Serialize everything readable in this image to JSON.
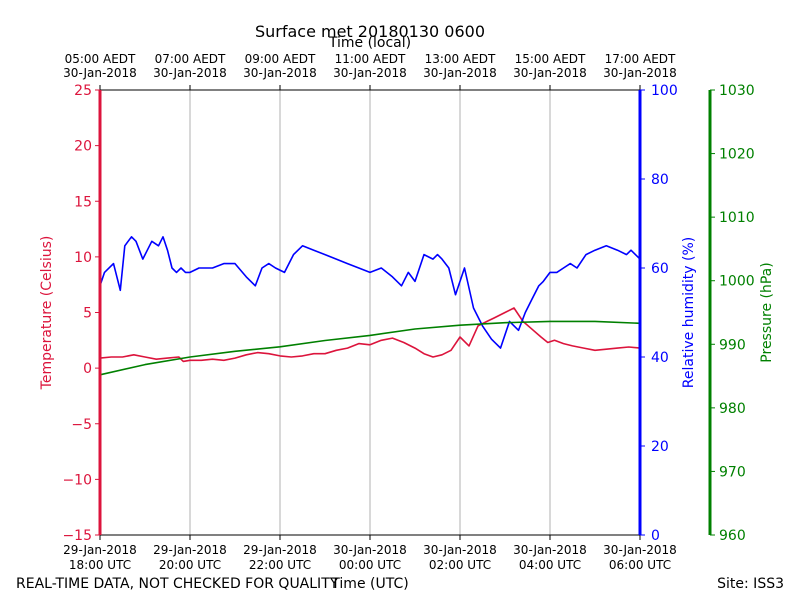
{
  "chart_data": {
    "type": "line",
    "title": "Surface met 20180130 0600",
    "top_xlabel": "Time (local)",
    "xlabel": "Time (UTC)",
    "x_range_hours": [
      0,
      12
    ],
    "grid": "vertical only",
    "x_ticks": [
      {
        "hour": 0,
        "utc": [
          "29-Jan-2018",
          "18:00 UTC"
        ],
        "local": [
          "05:00 AEDT",
          "30-Jan-2018"
        ]
      },
      {
        "hour": 2,
        "utc": [
          "29-Jan-2018",
          "20:00 UTC"
        ],
        "local": [
          "07:00 AEDT",
          "30-Jan-2018"
        ]
      },
      {
        "hour": 4,
        "utc": [
          "29-Jan-2018",
          "22:00 UTC"
        ],
        "local": [
          "09:00 AEDT",
          "30-Jan-2018"
        ]
      },
      {
        "hour": 6,
        "utc": [
          "30-Jan-2018",
          "00:00 UTC"
        ],
        "local": [
          "11:00 AEDT",
          "30-Jan-2018"
        ]
      },
      {
        "hour": 8,
        "utc": [
          "30-Jan-2018",
          "02:00 UTC"
        ],
        "local": [
          "13:00 AEDT",
          "30-Jan-2018"
        ]
      },
      {
        "hour": 10,
        "utc": [
          "30-Jan-2018",
          "04:00 UTC"
        ],
        "local": [
          "15:00 AEDT",
          "30-Jan-2018"
        ]
      },
      {
        "hour": 12,
        "utc": [
          "30-Jan-2018",
          "06:00 UTC"
        ],
        "local": [
          "17:00 AEDT",
          "30-Jan-2018"
        ]
      }
    ],
    "axes": {
      "temperature": {
        "label": "Temperature (Celsius)",
        "ylim": [
          -15,
          25
        ],
        "ticks": [
          -15,
          -10,
          -5,
          0,
          5,
          10,
          15,
          20,
          25
        ],
        "color": "#dc143c"
      },
      "humidity": {
        "label": "Relative humidity (%)",
        "ylim": [
          0,
          100
        ],
        "ticks": [
          0,
          20,
          40,
          60,
          80,
          100
        ],
        "color": "#0000ff"
      },
      "pressure": {
        "label": "Pressure (hPa)",
        "ylim": [
          960,
          1030
        ],
        "ticks": [
          960,
          970,
          980,
          990,
          1000,
          1010,
          1020,
          1030
        ],
        "color": "#008000"
      }
    },
    "series": [
      {
        "name": "Temperature",
        "axis": "temperature",
        "color": "#dc143c",
        "x": [
          0,
          0.25,
          0.5,
          0.75,
          1.0,
          1.25,
          1.5,
          1.75,
          1.85,
          2.0,
          2.25,
          2.5,
          2.75,
          3.0,
          3.25,
          3.5,
          3.75,
          4.0,
          4.25,
          4.5,
          4.75,
          5.0,
          5.25,
          5.5,
          5.75,
          6.0,
          6.25,
          6.5,
          6.75,
          7.0,
          7.2,
          7.4,
          7.6,
          7.8,
          8.0,
          8.2,
          8.4,
          8.6,
          8.75,
          9.0,
          9.2,
          9.4,
          9.6,
          9.8,
          9.95,
          10.1,
          10.3,
          10.5,
          10.75,
          11.0,
          11.25,
          11.5,
          11.75,
          12.0
        ],
        "values": [
          0.9,
          1.0,
          1.0,
          1.2,
          1.0,
          0.8,
          0.9,
          1.0,
          0.6,
          0.7,
          0.7,
          0.8,
          0.7,
          0.9,
          1.2,
          1.4,
          1.3,
          1.1,
          1.0,
          1.1,
          1.3,
          1.3,
          1.6,
          1.8,
          2.2,
          2.1,
          2.5,
          2.7,
          2.3,
          1.8,
          1.3,
          1.0,
          1.2,
          1.6,
          2.8,
          2.0,
          3.8,
          4.2,
          4.5,
          5.0,
          5.4,
          4.2,
          3.5,
          2.8,
          2.3,
          2.5,
          2.2,
          2.0,
          1.8,
          1.6,
          1.7,
          1.8,
          1.9,
          1.8
        ]
      },
      {
        "name": "Relative humidity",
        "axis": "humidity",
        "color": "#0000ff",
        "x": [
          0,
          0.1,
          0.3,
          0.45,
          0.55,
          0.7,
          0.8,
          0.95,
          1.05,
          1.15,
          1.3,
          1.4,
          1.5,
          1.6,
          1.7,
          1.8,
          1.9,
          2.0,
          2.2,
          2.5,
          2.75,
          3.0,
          3.25,
          3.45,
          3.6,
          3.75,
          3.9,
          4.1,
          4.3,
          4.5,
          4.75,
          5.0,
          5.25,
          5.5,
          5.75,
          6.0,
          6.25,
          6.5,
          6.7,
          6.85,
          7.0,
          7.2,
          7.4,
          7.5,
          7.6,
          7.75,
          7.9,
          8.1,
          8.3,
          8.5,
          8.7,
          8.9,
          9.1,
          9.3,
          9.45,
          9.6,
          9.75,
          9.85,
          10.0,
          10.15,
          10.3,
          10.45,
          10.6,
          10.8,
          11.0,
          11.25,
          11.5,
          11.7,
          11.8,
          12.0
        ],
        "values": [
          56,
          59,
          61,
          55,
          65,
          67,
          66,
          62,
          64,
          66,
          65,
          67,
          64,
          60,
          59,
          60,
          59,
          59,
          60,
          60,
          61,
          61,
          58,
          56,
          60,
          61,
          60,
          59,
          63,
          65,
          64,
          63,
          62,
          61,
          60,
          59,
          60,
          58,
          56,
          59,
          57,
          63,
          62,
          63,
          62,
          60,
          54,
          60,
          51,
          47,
          44,
          42,
          48,
          46,
          50,
          53,
          56,
          57,
          59,
          59,
          60,
          61,
          60,
          63,
          64,
          65,
          64,
          63,
          64,
          62
        ]
      },
      {
        "name": "Pressure",
        "axis": "pressure",
        "color": "#008000",
        "x": [
          0,
          1,
          2,
          3,
          4,
          5,
          6,
          7,
          8,
          9,
          10,
          11,
          12
        ],
        "values": [
          985.2,
          986.8,
          988.0,
          988.9,
          989.6,
          990.6,
          991.4,
          992.4,
          993.0,
          993.4,
          993.6,
          993.6,
          993.3
        ]
      }
    ]
  },
  "footer": {
    "left": "REAL-TIME DATA, NOT CHECKED FOR QUALITY",
    "right": "Site: ISS3"
  }
}
